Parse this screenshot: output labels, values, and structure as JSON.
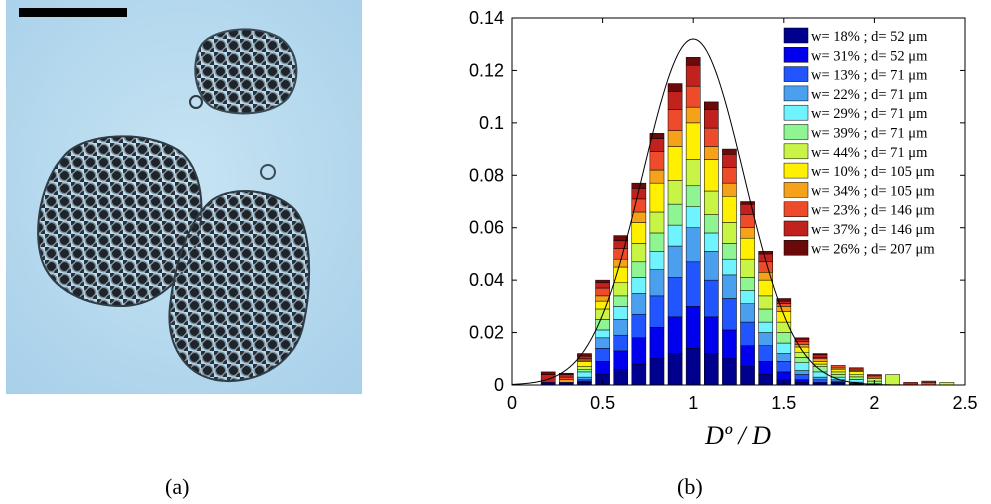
{
  "captions": {
    "a": "(a)",
    "b": "(b)"
  },
  "chart_data": {
    "type": "bar",
    "stacked": true,
    "xlabel": "Dº / D",
    "ylabel": "",
    "xlim": [
      0,
      2.5
    ],
    "ylim": [
      0,
      0.14
    ],
    "xticks": [
      "0",
      "0.5",
      "1",
      "1.5",
      "2",
      "2.5"
    ],
    "yticks": [
      "0",
      "0.02",
      "0.04",
      "0.06",
      "0.08",
      "0.1",
      "0.12",
      "0.14"
    ],
    "grid": false,
    "legend_position": "top-right",
    "categories": [
      0.2,
      0.3,
      0.4,
      0.5,
      0.6,
      0.7,
      0.8,
      0.9,
      1.0,
      1.1,
      1.2,
      1.3,
      1.4,
      1.5,
      1.6,
      1.7,
      1.8,
      1.9,
      2.0,
      2.1,
      2.2,
      2.3,
      2.4
    ],
    "series": [
      {
        "name": "w= 18% ; d= 52 μm",
        "color": "#00008f",
        "values": [
          0.0005,
          0.0005,
          0.001,
          0.004,
          0.006,
          0.008,
          0.01,
          0.012,
          0.014,
          0.012,
          0.01,
          0.007,
          0.004,
          0.002,
          0.001,
          0.0005,
          0.0005,
          0.0003,
          0,
          0,
          0,
          0,
          0
        ]
      },
      {
        "name": "w= 31% ; d= 52 μm",
        "color": "#0000ee",
        "values": [
          0.0005,
          0.0005,
          0.0005,
          0.005,
          0.007,
          0.01,
          0.012,
          0.014,
          0.016,
          0.014,
          0.011,
          0.008,
          0.005,
          0.003,
          0.001,
          0.0005,
          0.0005,
          0.0003,
          0,
          0,
          0,
          0,
          0
        ]
      },
      {
        "name": "w= 13% ; d= 71 μm",
        "color": "#2055ff",
        "values": [
          0,
          0,
          0.0005,
          0.005,
          0.006,
          0.009,
          0.012,
          0.015,
          0.017,
          0.014,
          0.012,
          0.009,
          0.006,
          0.004,
          0.002,
          0.001,
          0.0005,
          0,
          0,
          0,
          0,
          0,
          0
        ]
      },
      {
        "name": "w= 22% ; d= 71 μm",
        "color": "#4aa0ef",
        "values": [
          0,
          0,
          0.001,
          0.004,
          0.006,
          0.008,
          0.01,
          0.012,
          0.013,
          0.011,
          0.009,
          0.007,
          0.005,
          0.003,
          0.0015,
          0.001,
          0.0005,
          0.0005,
          0,
          0,
          0,
          0,
          0
        ]
      },
      {
        "name": "w= 29% ; d= 71 μm",
        "color": "#6ff3ff",
        "values": [
          0,
          0,
          0.002,
          0.003,
          0.005,
          0.006,
          0.007,
          0.008,
          0.008,
          0.007,
          0.006,
          0.005,
          0.004,
          0.004,
          0.003,
          0.002,
          0.001,
          0.001,
          0.0005,
          0,
          0,
          0,
          0
        ]
      },
      {
        "name": "w= 39% ; d= 71 μm",
        "color": "#8ff593",
        "values": [
          0,
          0,
          0.001,
          0.004,
          0.004,
          0.006,
          0.007,
          0.008,
          0.008,
          0.007,
          0.006,
          0.005,
          0.005,
          0.004,
          0.002,
          0.002,
          0.001,
          0.001,
          0.001,
          0,
          0,
          0,
          0
        ]
      },
      {
        "name": "w= 44% ; d= 71 μm",
        "color": "#c8f545",
        "values": [
          0,
          0,
          0.001,
          0.004,
          0.005,
          0.007,
          0.008,
          0.009,
          0.01,
          0.009,
          0.008,
          0.007,
          0.005,
          0.004,
          0.002,
          0.001,
          0.001,
          0.001,
          0.001,
          0.004,
          0,
          0,
          0.001
        ]
      },
      {
        "name": "w= 10% ; d= 105 μm",
        "color": "#ffef00",
        "values": [
          0,
          0,
          0.002,
          0.003,
          0.006,
          0.008,
          0.011,
          0.013,
          0.014,
          0.012,
          0.01,
          0.008,
          0.006,
          0.004,
          0.002,
          0.001,
          0.001,
          0.001,
          0.0005,
          0,
          0,
          0,
          0
        ]
      },
      {
        "name": "w= 34% ; d= 105 μm",
        "color": "#f5a21a",
        "values": [
          0,
          0.001,
          0.0005,
          0.002,
          0.003,
          0.004,
          0.005,
          0.006,
          0.006,
          0.005,
          0.005,
          0.004,
          0.003,
          0.002,
          0.001,
          0.001,
          0.0005,
          0.0005,
          0,
          0,
          0,
          0,
          0
        ]
      },
      {
        "name": "w= 23% ; d= 146 μm",
        "color": "#ee4b2a",
        "values": [
          0,
          0.001,
          0.0005,
          0.003,
          0.004,
          0.005,
          0.007,
          0.008,
          0.008,
          0.007,
          0.006,
          0.005,
          0.004,
          0.001,
          0.001,
          0.0005,
          0.001,
          0.0005,
          0.0005,
          0,
          0,
          0.001,
          0
        ]
      },
      {
        "name": "w= 37% ; d= 146 μm",
        "color": "#c1221e",
        "values": [
          0.003,
          0.001,
          0.001,
          0.002,
          0.003,
          0.004,
          0.005,
          0.007,
          0.008,
          0.007,
          0.005,
          0.004,
          0.003,
          0.001,
          0.001,
          0.001,
          0,
          0.0005,
          0.0005,
          0,
          0.001,
          0.0005,
          0
        ]
      },
      {
        "name": "w= 26% ; d= 207 μm",
        "color": "#6b0a0a",
        "values": [
          0.001,
          0.0005,
          0.001,
          0.001,
          0.002,
          0.002,
          0.002,
          0.003,
          0.003,
          0.003,
          0.002,
          0.001,
          0.001,
          0.001,
          0.0005,
          0.0005,
          0,
          0,
          0,
          0,
          0,
          0,
          0
        ]
      }
    ],
    "fit_curve": {
      "type": "gaussian",
      "mean": 1.0,
      "sigma": 0.28,
      "peak": 0.132
    }
  }
}
